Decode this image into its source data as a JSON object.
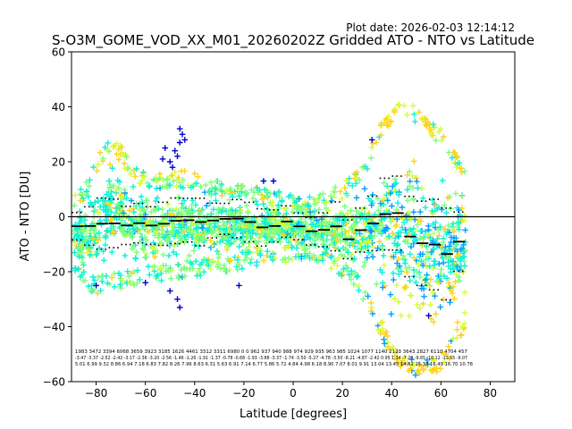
{
  "chart_data": {
    "type": "scatter",
    "plot_date": "Plot date: 2026-02-03 12:14:12",
    "title": "S-O3M_GOME_VOD_XX_M01_20260202Z Gridded ATO - NTO vs Latitude",
    "xlabel": "Latitude [degrees]",
    "ylabel": "ATO - NTO [DU]",
    "xlim": [
      -90,
      90
    ],
    "ylim": [
      -60,
      60
    ],
    "xticks": [
      -80,
      -60,
      -40,
      -20,
      0,
      20,
      40,
      60,
      80
    ],
    "yticks": [
      -60,
      -40,
      -20,
      0,
      20,
      40,
      60
    ],
    "colors": {
      "navy": "#0000cd",
      "blue": "#00a0ff",
      "cyan": "#10f0d8",
      "green": "#7cff7a",
      "yellow": "#ffd21a",
      "lime": "#d2ff3a"
    },
    "envelope": {
      "lat": [
        -90,
        -85,
        -80,
        -75,
        -70,
        -65,
        -60,
        -55,
        -50,
        -45,
        -40,
        -35,
        -30,
        -25,
        -20,
        -15,
        -10,
        -5,
        0,
        5,
        10,
        15,
        20,
        25,
        30,
        35,
        40,
        45,
        50,
        55,
        60,
        65,
        70
      ],
      "upper": [
        6,
        12,
        22,
        30,
        26,
        18,
        17,
        16,
        16,
        17,
        16,
        14,
        13,
        12,
        12,
        11,
        10,
        9,
        8,
        7,
        8,
        10,
        12,
        16,
        22,
        34,
        40,
        42,
        40,
        36,
        32,
        26,
        18
      ],
      "lower": [
        -20,
        -26,
        -28,
        -27,
        -26,
        -25,
        -24,
        -24,
        -23,
        -22,
        -22,
        -21,
        -20,
        -20,
        -19,
        -18,
        -18,
        -17,
        -16,
        -16,
        -17,
        -19,
        -22,
        -26,
        -32,
        -42,
        -52,
        -56,
        -58,
        -58,
        -56,
        -50,
        -40
      ]
    },
    "mean_lat": [
      -87.5,
      -82.5,
      -77.5,
      -72.5,
      -67.5,
      -62.5,
      -57.5,
      -52.5,
      -47.5,
      -42.5,
      -37.5,
      -32.5,
      -27.5,
      -22.5,
      -17.5,
      -12.5,
      -7.5,
      -2.5,
      2.5,
      7.5,
      12.5,
      17.5,
      22.5,
      27.5,
      32.5,
      37.5,
      42.5,
      47.5,
      52.5,
      57.5,
      62.5,
      67.5
    ],
    "mean_values": [
      -3.47,
      -3.37,
      -2.52,
      -2.42,
      -3.17,
      -2.36,
      -3.2,
      -2.56,
      -1.46,
      -1.26,
      -1.91,
      -1.37,
      -0.78,
      -0.68,
      -1.93,
      -3.88,
      -3.37,
      -1.74,
      -3.5,
      -5.27,
      -4.78,
      -3.5,
      -8.21,
      -4.87,
      -2.42,
      0.95,
      1.34,
      -7.2,
      -9.65,
      -10.12,
      -13.55,
      -9.07
    ],
    "sigma_values": [
      5.01,
      6.99,
      9.32,
      8.86,
      6.94,
      7.18,
      6.83,
      7.82,
      8.26,
      7.96,
      8.63,
      6.31,
      5.63,
      6.91,
      7.14,
      6.77,
      5.86,
      5.72,
      4.84,
      4.98,
      6.18,
      8.9,
      7.07,
      8.01,
      9.91,
      13.04,
      13.45,
      14.62,
      15.33,
      16.49,
      16.7,
      10.78
    ],
    "counts": [
      1983,
      3472,
      3394,
      6068,
      3659,
      3923,
      3185,
      1626,
      4461,
      3312,
      3311,
      6980,
      0,
      0,
      962,
      937,
      940,
      988,
      974,
      929,
      935,
      963,
      985,
      1024,
      1077,
      1140,
      2123,
      3643,
      2827,
      6110,
      4704,
      457
    ],
    "stats_rows": {
      "counts": "1983 3472 3394 6068 3659 3923 3185 1626 4461 3312 3311 6980 0 0 962 937 940 988 974 929 935 963 985 1024 1077 1140 2123 3643 2827 6110 4704 457",
      "means": "-3.47 -3.37 -2.52 -2.42 -3.17 -2.36 -3.20 -2.56 -1.46 -1.26 -1.91 -1.37 -0.78 -0.68 -1.93 -3.88 -3.37 -1.74 -3.50 -5.27 -4.78 -3.50 -8.21 -4.87 -2.42 0.95 1.34 -7.20 -9.65 -10.12 -13.55 -9.07",
      "sigmas": "5.01 6.99 9.32 8.86 6.94 7.18 6.83 7.82 8.26 7.96 8.63 6.31 5.63 6.91 7.14 6.77 5.86 5.72 4.84 4.98 6.18 8.90 7.07 8.01 9.91 13.04 13.45 14.62 15.33 16.49 16.70 10.78"
    }
  }
}
